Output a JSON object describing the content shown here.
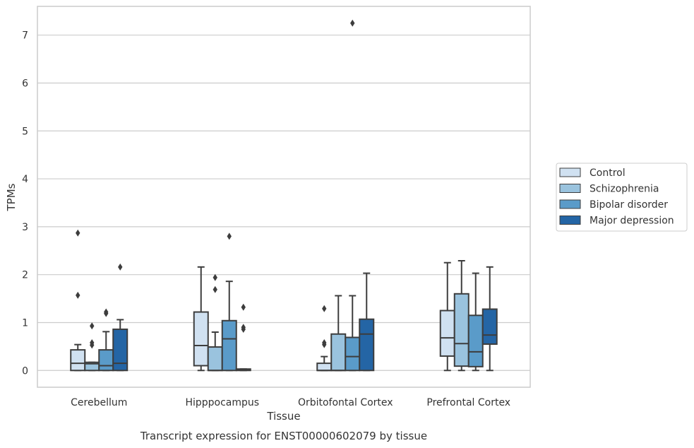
{
  "chart_data": {
    "type": "boxplot",
    "caption": "Transcript expression for ENST00000602079 by tissue",
    "xlabel": "Tissue",
    "ylabel": "TPMs",
    "ylim": [
      -0.35,
      7.6
    ],
    "yticks": [
      0,
      1,
      2,
      3,
      4,
      5,
      6,
      7
    ],
    "grid": "horizontal",
    "legend_position": "right",
    "categories": [
      "Cerebellum",
      "Hipppocampus",
      "Orbitofontal Cortex",
      "Prefrontal Cortex"
    ],
    "series": [
      {
        "name": "Control",
        "color": "#d0e1f1",
        "boxes": [
          {
            "whislo": 0.0,
            "q1": 0.0,
            "med": 0.15,
            "q3": 0.43,
            "whishi": 0.54,
            "fliers": [
              1.57,
              2.87
            ]
          },
          {
            "whislo": 0.0,
            "q1": 0.1,
            "med": 0.52,
            "q3": 1.22,
            "whishi": 2.16,
            "fliers": []
          },
          {
            "whislo": 0.0,
            "q1": 0.0,
            "med": 0.0,
            "q3": 0.15,
            "whishi": 0.29,
            "fliers": [
              0.54,
              0.58,
              1.29
            ]
          },
          {
            "whislo": 0.0,
            "q1": 0.3,
            "med": 0.68,
            "q3": 1.25,
            "whishi": 2.25,
            "fliers": []
          }
        ]
      },
      {
        "name": "Schizophrenia",
        "color": "#9ac3de",
        "boxes": [
          {
            "whislo": 0.0,
            "q1": 0.0,
            "med": 0.14,
            "q3": 0.17,
            "whishi": 0.17,
            "fliers": [
              0.53,
              0.58,
              0.93
            ]
          },
          {
            "whislo": 0.0,
            "q1": 0.0,
            "med": 0.0,
            "q3": 0.49,
            "whishi": 0.8,
            "fliers": [
              1.69,
              1.94
            ]
          },
          {
            "whislo": 0.0,
            "q1": 0.0,
            "med": 0.0,
            "q3": 0.76,
            "whishi": 1.56,
            "fliers": []
          },
          {
            "whislo": 0.0,
            "q1": 0.09,
            "med": 0.56,
            "q3": 1.6,
            "whishi": 2.29,
            "fliers": []
          }
        ]
      },
      {
        "name": "Bipolar disorder",
        "color": "#5a9bc9",
        "boxes": [
          {
            "whislo": 0.0,
            "q1": 0.0,
            "med": 0.1,
            "q3": 0.43,
            "whishi": 0.81,
            "fliers": [
              1.19,
              1.22
            ]
          },
          {
            "whislo": 0.0,
            "q1": 0.0,
            "med": 0.66,
            "q3": 1.04,
            "whishi": 1.86,
            "fliers": [
              2.8
            ]
          },
          {
            "whislo": 0.0,
            "q1": 0.0,
            "med": 0.29,
            "q3": 0.69,
            "whishi": 1.56,
            "fliers": [
              7.25
            ]
          },
          {
            "whislo": 0.0,
            "q1": 0.08,
            "med": 0.39,
            "q3": 1.15,
            "whishi": 2.03,
            "fliers": []
          }
        ]
      },
      {
        "name": "Major depression",
        "color": "#2465a5",
        "boxes": [
          {
            "whislo": 0.0,
            "q1": 0.0,
            "med": 0.15,
            "q3": 0.86,
            "whishi": 1.06,
            "fliers": [
              2.16
            ]
          },
          {
            "whislo": 0.0,
            "q1": 0.0,
            "med": 0.01,
            "q3": 0.03,
            "whishi": 0.03,
            "fliers": [
              0.86,
              0.9,
              1.32
            ]
          },
          {
            "whislo": 0.0,
            "q1": 0.0,
            "med": 0.76,
            "q3": 1.07,
            "whishi": 2.03,
            "fliers": []
          },
          {
            "whislo": 0.0,
            "q1": 0.55,
            "med": 0.74,
            "q3": 1.28,
            "whishi": 2.16,
            "fliers": []
          }
        ]
      }
    ]
  }
}
